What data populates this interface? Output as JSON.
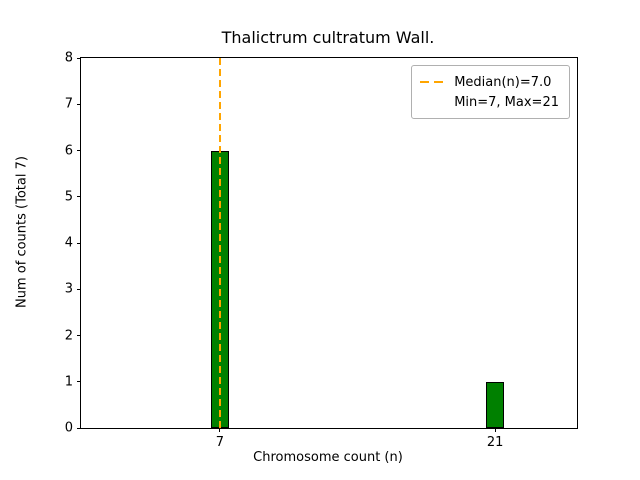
{
  "chart_data": {
    "type": "bar",
    "title": "Thalictrum cultratum Wall.",
    "xlabel": "Chromosome count (n)",
    "ylabel": "Num of counts      (Total 7)",
    "categories": [
      "7",
      "21"
    ],
    "values": [
      6,
      1
    ],
    "ylim": [
      0,
      8
    ],
    "yticks": [
      0,
      1,
      2,
      3,
      4,
      5,
      6,
      7,
      8
    ],
    "grid": false,
    "legend_position": "upper right",
    "legend_entries": [
      "Median(n)=7.0",
      "Min=7, Max=21"
    ],
    "median": {
      "value": 7.0,
      "at_category": "7",
      "line_style": "dashed"
    },
    "colors": {
      "bar_fill": "#008000",
      "bar_edge": "#000000",
      "median_line": "#FFA500",
      "axes": "#000000",
      "background": "#ffffff"
    }
  }
}
